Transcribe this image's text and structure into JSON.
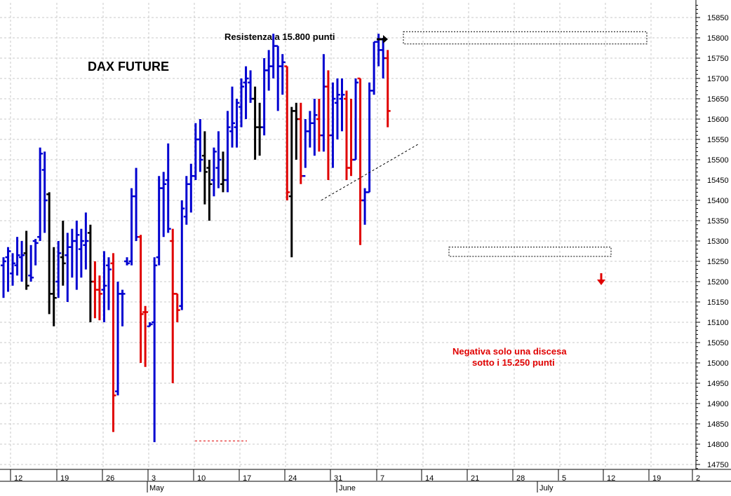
{
  "chart_data": {
    "type": "ohlc",
    "title": "DAX FUTURE",
    "ylim": [
      14700,
      15900
    ],
    "y_ticks": [
      14750,
      14800,
      14850,
      14900,
      14950,
      15000,
      15050,
      15100,
      15150,
      15200,
      15250,
      15300,
      15350,
      15400,
      15450,
      15500,
      15550,
      15600,
      15650,
      15700,
      15750,
      15800,
      15850
    ],
    "y_tick_labels": [
      "14750",
      "14800",
      "14850",
      "14900",
      "14950",
      "15000",
      "15050",
      "15100",
      "15150",
      "15200",
      "15250",
      "15300",
      "15350",
      "15400",
      "15450",
      "15500",
      "15550",
      "15600",
      "15650",
      "15700",
      "15750",
      "15800",
      "15850"
    ],
    "x_day_labels": [
      "12",
      "19",
      "26",
      "3",
      "10",
      "17",
      "24",
      "31",
      "7",
      "14",
      "21",
      "28",
      "5",
      "12",
      "19",
      "2"
    ],
    "x_month_labels": [
      "May",
      "June",
      "July"
    ],
    "bars": [
      {
        "c": "blue",
        "h": 15260,
        "l": 15160,
        "o": 15240,
        "cl": 15250
      },
      {
        "c": "blue",
        "h": 15285,
        "l": 15175,
        "o": 15260,
        "cl": 15275
      },
      {
        "c": "blue",
        "h": 15270,
        "l": 15190,
        "o": 15220,
        "cl": 15245
      },
      {
        "c": "blue",
        "h": 15310,
        "l": 15215,
        "o": 15240,
        "cl": 15265
      },
      {
        "c": "blue",
        "h": 15300,
        "l": 15200,
        "o": 15260,
        "cl": 15265
      },
      {
        "c": "black",
        "h": 15325,
        "l": 15180,
        "o": 15270,
        "cl": 15190
      },
      {
        "c": "blue",
        "h": 15290,
        "l": 15200,
        "o": 15215,
        "cl": 15210
      },
      {
        "c": "blue",
        "h": 15305,
        "l": 15240,
        "o": 15300,
        "cl": 15295
      },
      {
        "c": "blue",
        "h": 15530,
        "l": 15300,
        "o": 15310,
        "cl": 15515
      },
      {
        "c": "blue",
        "h": 15520,
        "l": 15320,
        "o": 15475,
        "cl": 15400
      },
      {
        "c": "black",
        "h": 15420,
        "l": 15120,
        "o": 15415,
        "cl": 15170
      },
      {
        "c": "black",
        "h": 15285,
        "l": 15090,
        "o": 15170,
        "cl": 15160
      },
      {
        "c": "blue",
        "h": 15300,
        "l": 15160,
        "o": 15200,
        "cl": 15270
      },
      {
        "c": "black",
        "h": 15350,
        "l": 15190,
        "o": 15260,
        "cl": 15245
      },
      {
        "c": "blue",
        "h": 15320,
        "l": 15150,
        "o": 15265,
        "cl": 15285
      },
      {
        "c": "blue",
        "h": 15330,
        "l": 15210,
        "o": 15285,
        "cl": 15300
      },
      {
        "c": "blue",
        "h": 15350,
        "l": 15180,
        "o": 15300,
        "cl": 15315
      },
      {
        "c": "blue",
        "h": 15330,
        "l": 15210,
        "o": 15280,
        "cl": 15300
      },
      {
        "c": "blue",
        "h": 15370,
        "l": 15230,
        "o": 15290,
        "cl": 15300
      },
      {
        "c": "black",
        "h": 15340,
        "l": 15100,
        "o": 15320,
        "cl": 15200
      },
      {
        "c": "red",
        "h": 15250,
        "l": 15110,
        "o": 15200,
        "cl": 15180
      },
      {
        "c": "red",
        "h": 15215,
        "l": 15105,
        "o": 15180,
        "cl": 15170
      },
      {
        "c": "blue",
        "h": 15275,
        "l": 15100,
        "o": 15180,
        "cl": 15190
      },
      {
        "c": "blue",
        "h": 15260,
        "l": 15130,
        "o": 15240,
        "cl": 15230
      },
      {
        "c": "red",
        "h": 15270,
        "l": 14830,
        "o": 15245,
        "cl": 14920
      },
      {
        "c": "blue",
        "h": 15200,
        "l": 14920,
        "o": 14930,
        "cl": 15170
      },
      {
        "c": "blue",
        "h": 15180,
        "l": 15090,
        "o": 15170,
        "cl": 15170
      },
      {
        "c": "blue",
        "h": 15260,
        "l": 15240,
        "o": 15250,
        "cl": 15245
      },
      {
        "c": "blue",
        "h": 15430,
        "l": 15240,
        "o": 15250,
        "cl": 15410
      },
      {
        "c": "blue",
        "h": 15480,
        "l": 15300,
        "o": 15410,
        "cl": 15310
      },
      {
        "c": "red",
        "h": 15315,
        "l": 15000,
        "o": 15310,
        "cl": 15120
      },
      {
        "c": "red",
        "h": 15140,
        "l": 14990,
        "o": 15125,
        "cl": 15125
      },
      {
        "c": "blue",
        "h": 15100,
        "l": 15090,
        "o": 15090,
        "cl": 15095
      },
      {
        "c": "blue",
        "h": 15260,
        "l": 14805,
        "o": 15100,
        "cl": 15240
      },
      {
        "c": "blue",
        "h": 15460,
        "l": 15240,
        "o": 15260,
        "cl": 15430
      },
      {
        "c": "blue",
        "h": 15470,
        "l": 15310,
        "o": 15430,
        "cl": 15440
      },
      {
        "c": "blue",
        "h": 15540,
        "l": 15320,
        "o": 15450,
        "cl": 15330
      },
      {
        "c": "red",
        "h": 15330,
        "l": 14950,
        "o": 15300,
        "cl": 15170
      },
      {
        "c": "red",
        "h": 15170,
        "l": 15100,
        "o": 15170,
        "cl": 15130
      },
      {
        "c": "blue",
        "h": 15400,
        "l": 15130,
        "o": 15140,
        "cl": 15380
      },
      {
        "c": "blue",
        "h": 15460,
        "l": 15340,
        "o": 15360,
        "cl": 15440
      },
      {
        "c": "blue",
        "h": 15490,
        "l": 15370,
        "o": 15440,
        "cl": 15460
      },
      {
        "c": "blue",
        "h": 15590,
        "l": 15450,
        "o": 15460,
        "cl": 15550
      },
      {
        "c": "blue",
        "h": 15600,
        "l": 15470,
        "o": 15550,
        "cl": 15500
      },
      {
        "c": "black",
        "h": 15570,
        "l": 15390,
        "o": 15510,
        "cl": 15470
      },
      {
        "c": "black",
        "h": 15500,
        "l": 15350,
        "o": 15480,
        "cl": 15440
      },
      {
        "c": "blue",
        "h": 15530,
        "l": 15410,
        "o": 15450,
        "cl": 15520
      },
      {
        "c": "blue",
        "h": 15570,
        "l": 15430,
        "o": 15480,
        "cl": 15500
      },
      {
        "c": "black",
        "h": 15520,
        "l": 15420,
        "o": 15440,
        "cl": 15450
      },
      {
        "c": "blue",
        "h": 15620,
        "l": 15420,
        "o": 15450,
        "cl": 15580
      },
      {
        "c": "blue",
        "h": 15680,
        "l": 15530,
        "o": 15570,
        "cl": 15590
      },
      {
        "c": "blue",
        "h": 15650,
        "l": 15530,
        "o": 15580,
        "cl": 15640
      },
      {
        "c": "blue",
        "h": 15700,
        "l": 15580,
        "o": 15630,
        "cl": 15680
      },
      {
        "c": "blue",
        "h": 15730,
        "l": 15600,
        "o": 15690,
        "cl": 15700
      },
      {
        "c": "blue",
        "h": 15720,
        "l": 15640,
        "o": 15690,
        "cl": 15650
      },
      {
        "c": "black",
        "h": 15680,
        "l": 15500,
        "o": 15650,
        "cl": 15580
      },
      {
        "c": "black",
        "h": 15640,
        "l": 15510,
        "o": 15580,
        "cl": 15580
      },
      {
        "c": "blue",
        "h": 15750,
        "l": 15560,
        "o": 15580,
        "cl": 15720
      },
      {
        "c": "blue",
        "h": 15770,
        "l": 15670,
        "o": 15720,
        "cl": 15730
      },
      {
        "c": "blue",
        "h": 15810,
        "l": 15700,
        "o": 15730,
        "cl": 15780
      },
      {
        "c": "blue",
        "h": 15780,
        "l": 15620,
        "o": 15780,
        "cl": 15730
      },
      {
        "c": "blue",
        "h": 15760,
        "l": 15660,
        "o": 15730,
        "cl": 15740
      },
      {
        "c": "red",
        "h": 15730,
        "l": 15400,
        "o": 15730,
        "cl": 15420
      },
      {
        "c": "black",
        "h": 15630,
        "l": 15260,
        "o": 15410,
        "cl": 15620
      },
      {
        "c": "black",
        "h": 15640,
        "l": 15500,
        "o": 15620,
        "cl": 15600
      },
      {
        "c": "red",
        "h": 15640,
        "l": 15440,
        "o": 15600,
        "cl": 15460
      },
      {
        "c": "blue",
        "h": 15600,
        "l": 15480,
        "o": 15460,
        "cl": 15570
      },
      {
        "c": "blue",
        "h": 15620,
        "l": 15530,
        "o": 15570,
        "cl": 15590
      },
      {
        "c": "blue",
        "h": 15650,
        "l": 15510,
        "o": 15590,
        "cl": 15610
      },
      {
        "c": "red",
        "h": 15650,
        "l": 15520,
        "o": 15600,
        "cl": 15560
      },
      {
        "c": "blue",
        "h": 15760,
        "l": 15520,
        "o": 15560,
        "cl": 15680
      },
      {
        "c": "red",
        "h": 15720,
        "l": 15450,
        "o": 15680,
        "cl": 15560
      },
      {
        "c": "blue",
        "h": 15690,
        "l": 15480,
        "o": 15560,
        "cl": 15650
      },
      {
        "c": "blue",
        "h": 15700,
        "l": 15550,
        "o": 15640,
        "cl": 15660
      },
      {
        "c": "blue",
        "h": 15700,
        "l": 15570,
        "o": 15650,
        "cl": 15660
      },
      {
        "c": "red",
        "h": 15670,
        "l": 15450,
        "o": 15650,
        "cl": 15480
      },
      {
        "c": "red",
        "h": 15650,
        "l": 15460,
        "o": 15480,
        "cl": 15500
      },
      {
        "c": "blue",
        "h": 15700,
        "l": 15500,
        "o": 15500,
        "cl": 15690
      },
      {
        "c": "red",
        "h": 15700,
        "l": 15290,
        "o": 15700,
        "cl": 15400
      },
      {
        "c": "blue",
        "h": 15430,
        "l": 15340,
        "o": 15400,
        "cl": 15420
      },
      {
        "c": "blue",
        "h": 15690,
        "l": 15420,
        "o": 15420,
        "cl": 15670
      },
      {
        "c": "blue",
        "h": 15790,
        "l": 15660,
        "o": 15670,
        "cl": 15790
      },
      {
        "c": "blue",
        "h": 15810,
        "l": 15730,
        "o": 15790,
        "cl": 15770
      },
      {
        "c": "blue",
        "h": 15800,
        "l": 15700,
        "o": 15770,
        "cl": 15750
      },
      {
        "c": "red",
        "h": 15770,
        "l": 15580,
        "o": 15750,
        "cl": 15620
      }
    ],
    "annotations": {
      "resistance_text": "Resistenza a 15.800 punti",
      "negative_text_line1": "Negativa solo una discesa",
      "negative_text_line2": "sotto i 15.250 punti"
    },
    "colors": {
      "up": "#0000d0",
      "down": "#e00000",
      "neutral": "#000000",
      "grid": "#c8c8c8"
    },
    "grid": true
  }
}
